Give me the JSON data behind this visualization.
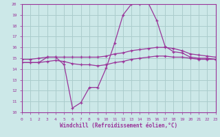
{
  "xlabel": "Windchill (Refroidissement éolien,°C)",
  "background_color": "#cce8e8",
  "grid_color": "#aacccc",
  "line_color": "#993399",
  "xlim": [
    0,
    23
  ],
  "ylim": [
    10,
    20
  ],
  "yticks": [
    10,
    11,
    12,
    13,
    14,
    15,
    16,
    17,
    18,
    19,
    20
  ],
  "xticks": [
    0,
    1,
    2,
    3,
    4,
    5,
    6,
    7,
    8,
    9,
    10,
    11,
    12,
    13,
    14,
    15,
    16,
    17,
    18,
    19,
    20,
    21,
    22,
    23
  ],
  "series": [
    {
      "x": [
        0,
        1,
        2,
        3,
        4,
        5,
        6,
        7,
        8,
        9,
        10,
        11,
        12,
        13,
        14,
        15,
        16,
        17,
        18,
        19,
        20,
        21,
        22,
        23
      ],
      "y": [
        14.6,
        14.6,
        14.6,
        15.1,
        15.1,
        14.4,
        10.4,
        10.9,
        12.3,
        12.3,
        14.1,
        16.4,
        19.0,
        20.0,
        20.0,
        20.1,
        18.5,
        16.1,
        15.6,
        15.5,
        15.1,
        15.0,
        15.0,
        14.9
      ]
    },
    {
      "x": [
        0,
        1,
        2,
        3,
        4,
        5,
        6,
        7,
        8,
        9,
        10,
        11,
        12,
        13,
        14,
        15,
        16,
        17,
        18,
        19,
        20,
        21,
        22,
        23
      ],
      "y": [
        14.9,
        14.9,
        15.0,
        15.1,
        15.1,
        15.1,
        15.1,
        15.1,
        15.1,
        15.1,
        15.2,
        15.4,
        15.5,
        15.7,
        15.8,
        15.9,
        16.0,
        16.0,
        15.9,
        15.7,
        15.4,
        15.3,
        15.2,
        15.1
      ]
    },
    {
      "x": [
        0,
        1,
        2,
        3,
        4,
        5,
        6,
        7,
        8,
        9,
        10,
        11,
        12,
        13,
        14,
        15,
        16,
        17,
        18,
        19,
        20,
        21,
        22,
        23
      ],
      "y": [
        14.6,
        14.6,
        14.6,
        14.7,
        14.8,
        14.7,
        14.5,
        14.4,
        14.4,
        14.3,
        14.4,
        14.6,
        14.7,
        14.9,
        15.0,
        15.1,
        15.2,
        15.2,
        15.1,
        15.1,
        15.0,
        14.9,
        14.9,
        14.9
      ]
    }
  ]
}
